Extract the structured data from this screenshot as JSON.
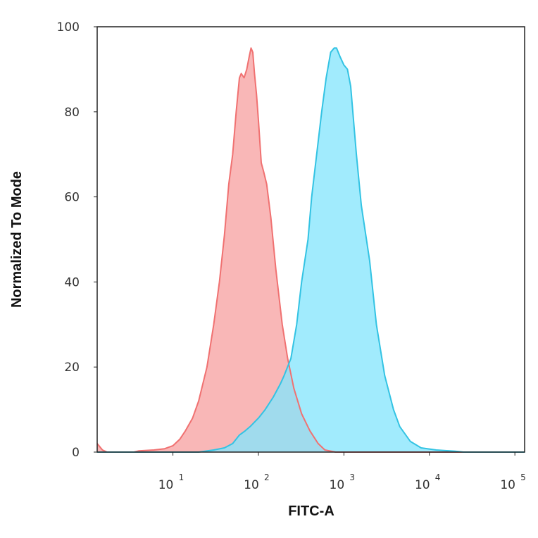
{
  "chart_data": {
    "type": "area",
    "xlabel": "FITC-A",
    "ylabel": "Normalized To Mode",
    "x_scale": "log",
    "xlim": [
      1.3,
      130000
    ],
    "ylim": [
      0,
      100
    ],
    "grid": false,
    "legend": "none",
    "x_ticks": [
      {
        "value": 10,
        "base": "10",
        "exp": "1"
      },
      {
        "value": 100,
        "base": "10",
        "exp": "2"
      },
      {
        "value": 1000,
        "base": "10",
        "exp": "3"
      },
      {
        "value": 10000,
        "base": "10",
        "exp": "4"
      },
      {
        "value": 100000,
        "base": "10",
        "exp": "5"
      }
    ],
    "y_ticks": [
      {
        "value": 0,
        "label": "0"
      },
      {
        "value": 20,
        "label": "20"
      },
      {
        "value": 40,
        "label": "40"
      },
      {
        "value": 60,
        "label": "60"
      },
      {
        "value": 80,
        "label": "80"
      },
      {
        "value": 100,
        "label": "100"
      }
    ],
    "series": [
      {
        "color": "#f07171",
        "fill": "#f7a3a3",
        "points": [
          [
            1.3,
            2
          ],
          [
            1.5,
            0.5
          ],
          [
            1.7,
            0
          ],
          [
            3.5,
            0
          ],
          [
            4,
            0.3
          ],
          [
            6,
            0.5
          ],
          [
            8,
            0.8
          ],
          [
            10,
            1.5
          ],
          [
            12,
            3
          ],
          [
            14,
            5
          ],
          [
            17,
            8
          ],
          [
            20,
            12
          ],
          [
            25,
            20
          ],
          [
            30,
            30
          ],
          [
            35,
            40
          ],
          [
            40,
            51
          ],
          [
            45,
            63
          ],
          [
            50,
            70
          ],
          [
            55,
            80
          ],
          [
            60,
            88
          ],
          [
            63,
            89
          ],
          [
            68,
            88
          ],
          [
            73,
            90
          ],
          [
            78,
            93
          ],
          [
            82,
            95
          ],
          [
            86,
            94
          ],
          [
            90,
            89
          ],
          [
            95,
            84
          ],
          [
            100,
            78
          ],
          [
            108,
            68
          ],
          [
            115,
            66
          ],
          [
            125,
            63
          ],
          [
            140,
            55
          ],
          [
            160,
            43
          ],
          [
            190,
            30
          ],
          [
            220,
            22
          ],
          [
            260,
            15
          ],
          [
            320,
            9
          ],
          [
            400,
            5
          ],
          [
            500,
            2
          ],
          [
            600,
            0.5
          ],
          [
            800,
            0
          ],
          [
            130000,
            0
          ]
        ]
      },
      {
        "color": "#33c3e3",
        "fill": "#86e6fc",
        "points": [
          [
            1.3,
            0
          ],
          [
            20,
            0
          ],
          [
            30,
            0.5
          ],
          [
            40,
            1
          ],
          [
            50,
            2
          ],
          [
            60,
            4
          ],
          [
            70,
            5
          ],
          [
            80,
            6
          ],
          [
            100,
            8
          ],
          [
            120,
            10
          ],
          [
            150,
            13
          ],
          [
            180,
            16
          ],
          [
            200,
            18
          ],
          [
            240,
            22
          ],
          [
            280,
            30
          ],
          [
            320,
            40
          ],
          [
            380,
            50
          ],
          [
            420,
            60
          ],
          [
            480,
            70
          ],
          [
            550,
            80
          ],
          [
            620,
            88
          ],
          [
            700,
            94
          ],
          [
            770,
            95
          ],
          [
            820,
            95
          ],
          [
            900,
            93
          ],
          [
            1000,
            91
          ],
          [
            1100,
            90
          ],
          [
            1200,
            86
          ],
          [
            1400,
            70
          ],
          [
            1600,
            58
          ],
          [
            2000,
            45
          ],
          [
            2400,
            30
          ],
          [
            3000,
            18
          ],
          [
            3800,
            10
          ],
          [
            4500,
            6
          ],
          [
            6000,
            2.5
          ],
          [
            8000,
            1
          ],
          [
            12000,
            0.5
          ],
          [
            20000,
            0.2
          ],
          [
            25000,
            0
          ],
          [
            130000,
            0
          ]
        ]
      }
    ]
  }
}
